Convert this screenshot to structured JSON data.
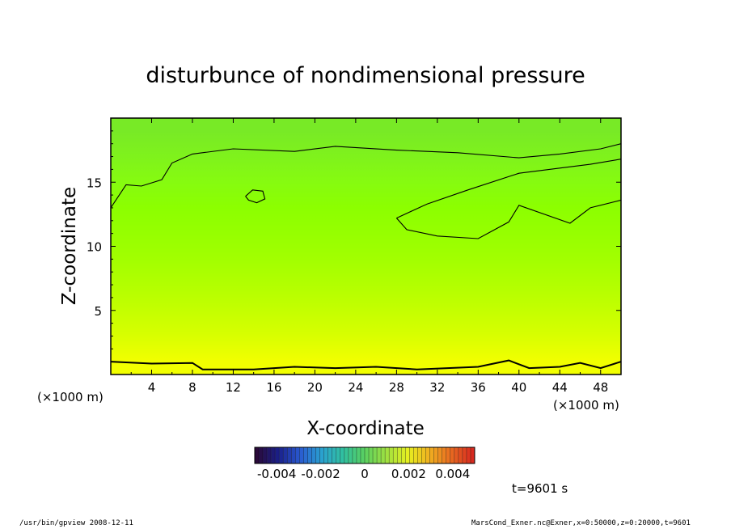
{
  "chart_data": {
    "type": "heatmap",
    "title": "disturbunce of nondimensional pressure",
    "xlabel": "X-coordinate",
    "ylabel": "Z-coordinate",
    "x_unit": "(×1000 m)",
    "y_unit": "(×1000 m)",
    "xlim": [
      0,
      50
    ],
    "ylim": [
      0,
      20
    ],
    "x_ticks": [
      4,
      8,
      12,
      16,
      20,
      24,
      28,
      32,
      36,
      40,
      44,
      48
    ],
    "y_ticks": [
      5,
      10,
      15
    ],
    "colorbar": {
      "range": [
        -0.005,
        0.005
      ],
      "tick_values": [
        -0.004,
        -0.002,
        0,
        0.002,
        0.004
      ],
      "tick_labels": [
        "-0.004",
        "-0.002",
        "0",
        "0.002",
        "0.004"
      ],
      "colors": [
        "#2a0a3a",
        "#1a1f8a",
        "#2a5ad0",
        "#2aa0d0",
        "#30c0a0",
        "#5ad060",
        "#a0e040",
        "#e6f020",
        "#f0b020",
        "#e86a20",
        "#d82a20"
      ]
    },
    "field_rows_bottom_to_top": [
      {
        "z": 1,
        "color": "#f2ff00"
      },
      {
        "z": 3,
        "color": "#d8ff00"
      },
      {
        "z": 5,
        "color": "#c4ff00"
      },
      {
        "z": 7,
        "color": "#b2ff00"
      },
      {
        "z": 9,
        "color": "#a2ff00"
      },
      {
        "z": 11,
        "color": "#96ff00"
      },
      {
        "z": 13,
        "color": "#8cff00"
      },
      {
        "z": 15,
        "color": "#86fb10"
      },
      {
        "z": 17,
        "color": "#7ff21c"
      },
      {
        "z": 19,
        "color": "#78ea26"
      }
    ],
    "contours": [
      {
        "name": "upper-left",
        "points": [
          [
            0,
            13
          ],
          [
            1.5,
            14.8
          ],
          [
            3,
            14.7
          ],
          [
            5,
            15.2
          ],
          [
            6,
            16.5
          ],
          [
            8,
            17.2
          ],
          [
            12,
            17.6
          ],
          [
            18,
            17.4
          ],
          [
            22,
            17.8
          ],
          [
            28,
            17.5
          ],
          [
            34,
            17.3
          ],
          [
            40,
            16.9
          ],
          [
            44,
            17.2
          ],
          [
            48,
            17.6
          ],
          [
            50,
            18
          ]
        ]
      },
      {
        "name": "right-blob",
        "points": [
          [
            28,
            12.2
          ],
          [
            31,
            13.3
          ],
          [
            35,
            14.4
          ],
          [
            40,
            15.7
          ],
          [
            44,
            16.1
          ],
          [
            47,
            16.4
          ],
          [
            50,
            16.8
          ],
          [
            50,
            13.6
          ],
          [
            47,
            13
          ],
          [
            45,
            11.8
          ],
          [
            40,
            13.2
          ],
          [
            39,
            11.9
          ],
          [
            36,
            10.6
          ],
          [
            32,
            10.8
          ],
          [
            29,
            11.3
          ],
          [
            28,
            12.2
          ]
        ]
      },
      {
        "name": "small-loop",
        "points": [
          [
            13.2,
            13.9
          ],
          [
            13.9,
            14.4
          ],
          [
            14.9,
            14.3
          ],
          [
            15.1,
            13.7
          ],
          [
            14.3,
            13.4
          ],
          [
            13.5,
            13.6
          ],
          [
            13.2,
            13.9
          ]
        ]
      },
      {
        "name": "bottom",
        "points": [
          [
            0,
            1
          ],
          [
            4,
            0.85
          ],
          [
            8,
            0.9
          ],
          [
            9,
            0.4
          ],
          [
            14,
            0.4
          ],
          [
            18,
            0.6
          ],
          [
            22,
            0.5
          ],
          [
            26,
            0.6
          ],
          [
            30,
            0.4
          ],
          [
            36,
            0.6
          ],
          [
            39,
            1.1
          ],
          [
            41,
            0.5
          ],
          [
            44,
            0.6
          ],
          [
            46,
            0.9
          ],
          [
            48,
            0.5
          ],
          [
            50,
            1
          ]
        ]
      }
    ],
    "time_label": "t=9601 s"
  },
  "footer": {
    "left": "/usr/bin/gpview 2008-12-11",
    "right": "MarsCond_Exner.nc@Exner,x=0:50000,z=0:20000,t=9601"
  }
}
